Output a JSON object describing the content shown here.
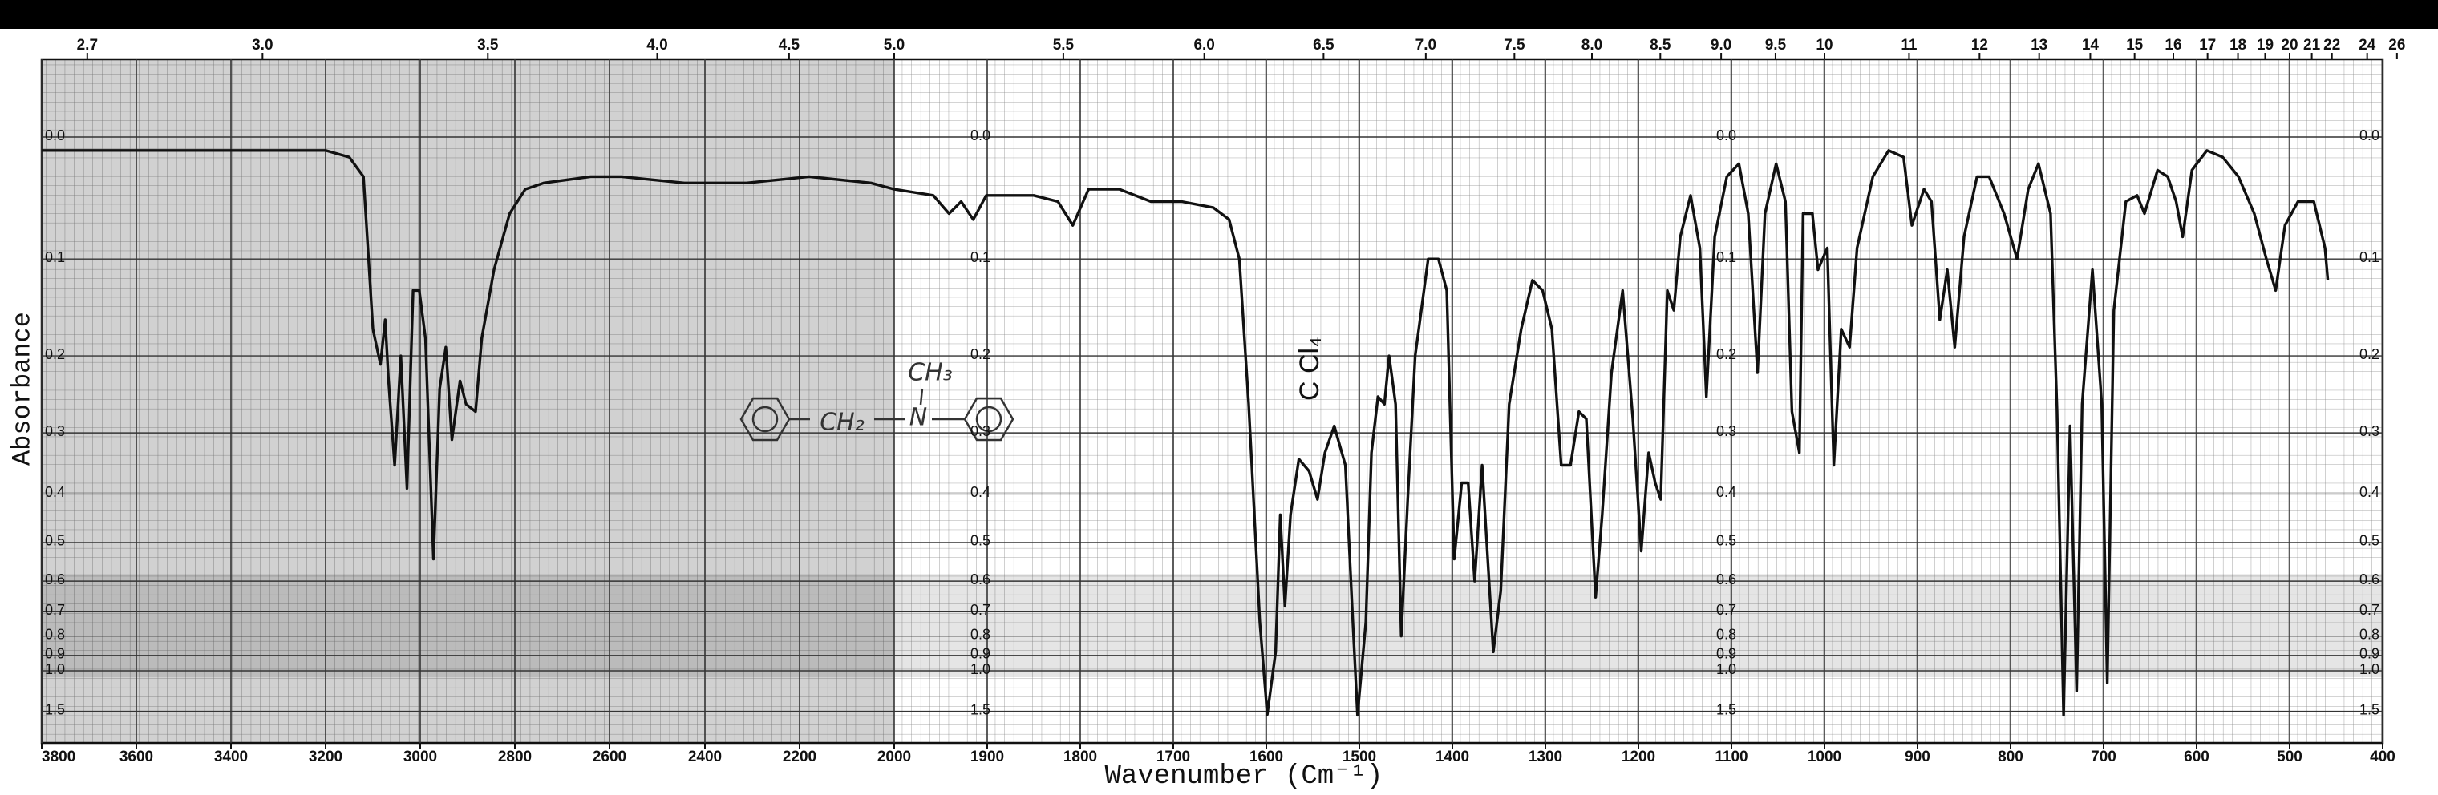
{
  "chart_data": {
    "type": "line",
    "x_label": "Wavenumber (Cm⁻¹)",
    "y_label": "Absorbance",
    "annotations": {
      "solvent": "C Cl₄",
      "ch2": "CH₂",
      "n": "N",
      "ch3": "CH₃"
    },
    "color": "#111111",
    "yscale": "absorbance",
    "grid": true,
    "xlim": [
      3800,
      400
    ],
    "xticks": [
      3800,
      3600,
      3400,
      3200,
      3000,
      2800,
      2600,
      2400,
      2200,
      2000,
      1900,
      1800,
      1700,
      1600,
      1500,
      1400,
      1300,
      1200,
      1100,
      1000,
      900,
      800,
      700,
      600,
      500,
      400
    ],
    "x2ticks": [
      2.7,
      {
        "value": 3,
        "label": "3.0"
      },
      3.5,
      {
        "value": 4,
        "label": "4.0"
      },
      4.5,
      {
        "value": 5,
        "label": "5.0"
      },
      5.5,
      {
        "value": 6,
        "label": "6.0"
      },
      6.5,
      {
        "value": 7,
        "label": "7.0"
      },
      7.5,
      {
        "value": 8,
        "label": "8.0"
      },
      8.5,
      {
        "value": 9,
        "label": "9.0"
      },
      9.5,
      10,
      11,
      12,
      13,
      14,
      15,
      16,
      17,
      18,
      19,
      20,
      21,
      22,
      24,
      26
    ],
    "yticks": [
      {
        "value": 0,
        "label": "0.0"
      },
      0.1,
      0.2,
      0.3,
      0.4,
      0.5,
      0.6,
      0.7,
      0.8,
      0.9,
      {
        "value": 1,
        "label": "1.0"
      },
      1.5
    ],
    "x": [
      3800,
      3600,
      3400,
      3300,
      3200,
      3150,
      3120,
      3100,
      3084,
      3074,
      3067,
      3054,
      3041,
      3028,
      3015,
      3002,
      2989,
      2972,
      2959,
      2946,
      2933,
      2916,
      2903,
      2883,
      2870,
      2844,
      2811,
      2778,
      2739,
      2640,
      2575,
      2443,
      2312,
      2180,
      2049,
      2000,
      1958,
      1941,
      1928,
      1915,
      1901,
      1875,
      1850,
      1824,
      1808,
      1791,
      1758,
      1724,
      1691,
      1657,
      1640,
      1629,
      1619,
      1607,
      1599,
      1590,
      1585,
      1580,
      1574,
      1565,
      1554,
      1545,
      1537,
      1527,
      1515,
      1507,
      1502,
      1493,
      1487,
      1480,
      1473,
      1468,
      1461,
      1455,
      1448,
      1440,
      1426,
      1415,
      1406,
      1398,
      1390,
      1383,
      1376,
      1368,
      1356,
      1348,
      1339,
      1326,
      1314,
      1303,
      1293,
      1283,
      1273,
      1264,
      1256,
      1246,
      1239,
      1229,
      1217,
      1206,
      1197,
      1189,
      1182,
      1176,
      1169,
      1162,
      1155,
      1144,
      1134,
      1127,
      1118,
      1105,
      1092,
      1082,
      1072,
      1064,
      1052,
      1042,
      1035,
      1027,
      1023,
      1013,
      1007,
      997,
      990,
      982,
      973,
      965,
      948,
      931,
      915,
      906,
      893,
      885,
      876,
      868,
      860,
      850,
      836,
      823,
      807,
      793,
      781,
      770,
      757,
      750,
      743,
      736,
      729,
      723,
      712,
      702,
      696,
      689,
      676,
      664,
      656,
      642,
      631,
      622,
      615,
      605,
      589,
      572,
      555,
      538,
      525,
      515,
      505,
      491,
      474,
      462,
      459
    ],
    "values": [
      0.01,
      0.01,
      0.01,
      0.01,
      0.01,
      0.015,
      0.03,
      0.17,
      0.21,
      0.16,
      0.23,
      0.35,
      0.2,
      0.39,
      0.13,
      0.13,
      0.18,
      0.54,
      0.24,
      0.19,
      0.31,
      0.23,
      0.26,
      0.27,
      0.18,
      0.11,
      0.06,
      0.04,
      0.035,
      0.03,
      0.03,
      0.035,
      0.035,
      0.03,
      0.035,
      0.04,
      0.045,
      0.06,
      0.05,
      0.065,
      0.045,
      0.045,
      0.045,
      0.05,
      0.07,
      0.04,
      0.04,
      0.05,
      0.05,
      0.055,
      0.065,
      0.1,
      0.26,
      0.74,
      1.58,
      0.88,
      0.44,
      0.68,
      0.44,
      0.34,
      0.36,
      0.41,
      0.33,
      0.29,
      0.35,
      0.74,
      1.6,
      0.74,
      0.33,
      0.25,
      0.26,
      0.2,
      0.26,
      0.8,
      0.41,
      0.2,
      0.1,
      0.1,
      0.13,
      0.54,
      0.38,
      0.38,
      0.6,
      0.35,
      0.88,
      0.63,
      0.26,
      0.17,
      0.12,
      0.13,
      0.17,
      0.35,
      0.35,
      0.27,
      0.28,
      0.65,
      0.44,
      0.22,
      0.13,
      0.28,
      0.52,
      0.33,
      0.38,
      0.41,
      0.13,
      0.15,
      0.08,
      0.045,
      0.09,
      0.25,
      0.08,
      0.03,
      0.02,
      0.06,
      0.22,
      0.06,
      0.02,
      0.05,
      0.27,
      0.33,
      0.06,
      0.06,
      0.11,
      0.09,
      0.35,
      0.17,
      0.19,
      0.09,
      0.03,
      0.01,
      0.015,
      0.07,
      0.04,
      0.05,
      0.16,
      0.11,
      0.19,
      0.08,
      0.03,
      0.03,
      0.06,
      0.1,
      0.04,
      0.02,
      0.06,
      0.27,
      1.6,
      0.29,
      1.18,
      0.26,
      0.11,
      0.26,
      1.1,
      0.15,
      0.05,
      0.045,
      0.06,
      0.025,
      0.03,
      0.05,
      0.08,
      0.025,
      0.01,
      0.015,
      0.03,
      0.06,
      0.1,
      0.13,
      0.07,
      0.05,
      0.05,
      0.09,
      0.12
    ]
  }
}
